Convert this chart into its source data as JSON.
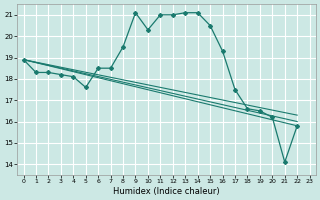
{
  "title": "",
  "xlabel": "Humidex (Indice chaleur)",
  "bg_color": "#cce8e4",
  "line_color": "#1a7a6e",
  "grid_color": "#ffffff",
  "xlim": [
    -0.5,
    23.5
  ],
  "ylim": [
    13.5,
    21.5
  ],
  "xticks": [
    0,
    1,
    2,
    3,
    4,
    5,
    6,
    7,
    8,
    9,
    10,
    11,
    12,
    13,
    14,
    15,
    16,
    17,
    18,
    19,
    20,
    21,
    22,
    23
  ],
  "yticks": [
    14,
    15,
    16,
    17,
    18,
    19,
    20,
    21
  ],
  "curve_main_x": [
    0,
    1,
    2,
    3,
    4,
    5,
    6,
    7,
    8,
    9,
    10,
    11,
    12,
    13,
    14,
    15,
    16,
    17,
    18,
    19,
    20,
    21,
    22
  ],
  "curve_main_y": [
    18.9,
    18.3,
    18.3,
    18.2,
    18.1,
    17.6,
    18.5,
    18.5,
    19.5,
    21.1,
    20.3,
    21.0,
    21.0,
    21.1,
    21.1,
    20.5,
    19.3,
    17.5,
    16.6,
    16.5,
    16.2,
    14.1,
    15.8
  ],
  "line1_x": [
    0,
    22
  ],
  "line1_y": [
    18.9,
    15.8
  ],
  "line2_x": [
    0,
    22
  ],
  "line2_y": [
    18.9,
    16.0
  ],
  "line3_x": [
    0,
    22
  ],
  "line3_y": [
    18.9,
    16.3
  ],
  "figsize": [
    3.2,
    2.0
  ],
  "dpi": 100
}
